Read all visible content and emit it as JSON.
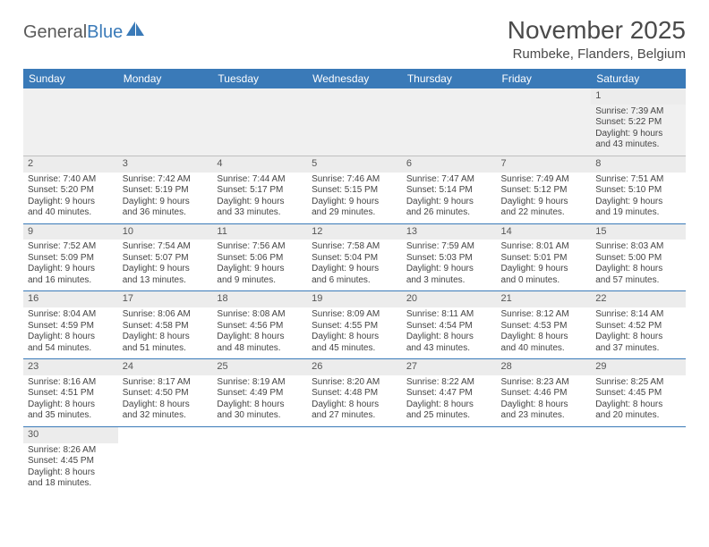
{
  "logo": {
    "text_gray": "General",
    "text_blue": "Blue",
    "sail_color": "#3a7ab8"
  },
  "header": {
    "month_title": "November 2025",
    "location": "Rumbeke, Flanders, Belgium"
  },
  "colors": {
    "header_bg": "#3a7ab8",
    "header_text": "#ffffff",
    "daynum_bg": "#ececec",
    "row_divider": "#3a7ab8",
    "first_row_bg": "#f0f0f0",
    "text": "#444444"
  },
  "day_headers": [
    "Sunday",
    "Monday",
    "Tuesday",
    "Wednesday",
    "Thursday",
    "Friday",
    "Saturday"
  ],
  "weeks": [
    [
      null,
      null,
      null,
      null,
      null,
      null,
      {
        "n": "1",
        "sunrise": "Sunrise: 7:39 AM",
        "sunset": "Sunset: 5:22 PM",
        "day1": "Daylight: 9 hours",
        "day2": "and 43 minutes."
      }
    ],
    [
      {
        "n": "2",
        "sunrise": "Sunrise: 7:40 AM",
        "sunset": "Sunset: 5:20 PM",
        "day1": "Daylight: 9 hours",
        "day2": "and 40 minutes."
      },
      {
        "n": "3",
        "sunrise": "Sunrise: 7:42 AM",
        "sunset": "Sunset: 5:19 PM",
        "day1": "Daylight: 9 hours",
        "day2": "and 36 minutes."
      },
      {
        "n": "4",
        "sunrise": "Sunrise: 7:44 AM",
        "sunset": "Sunset: 5:17 PM",
        "day1": "Daylight: 9 hours",
        "day2": "and 33 minutes."
      },
      {
        "n": "5",
        "sunrise": "Sunrise: 7:46 AM",
        "sunset": "Sunset: 5:15 PM",
        "day1": "Daylight: 9 hours",
        "day2": "and 29 minutes."
      },
      {
        "n": "6",
        "sunrise": "Sunrise: 7:47 AM",
        "sunset": "Sunset: 5:14 PM",
        "day1": "Daylight: 9 hours",
        "day2": "and 26 minutes."
      },
      {
        "n": "7",
        "sunrise": "Sunrise: 7:49 AM",
        "sunset": "Sunset: 5:12 PM",
        "day1": "Daylight: 9 hours",
        "day2": "and 22 minutes."
      },
      {
        "n": "8",
        "sunrise": "Sunrise: 7:51 AM",
        "sunset": "Sunset: 5:10 PM",
        "day1": "Daylight: 9 hours",
        "day2": "and 19 minutes."
      }
    ],
    [
      {
        "n": "9",
        "sunrise": "Sunrise: 7:52 AM",
        "sunset": "Sunset: 5:09 PM",
        "day1": "Daylight: 9 hours",
        "day2": "and 16 minutes."
      },
      {
        "n": "10",
        "sunrise": "Sunrise: 7:54 AM",
        "sunset": "Sunset: 5:07 PM",
        "day1": "Daylight: 9 hours",
        "day2": "and 13 minutes."
      },
      {
        "n": "11",
        "sunrise": "Sunrise: 7:56 AM",
        "sunset": "Sunset: 5:06 PM",
        "day1": "Daylight: 9 hours",
        "day2": "and 9 minutes."
      },
      {
        "n": "12",
        "sunrise": "Sunrise: 7:58 AM",
        "sunset": "Sunset: 5:04 PM",
        "day1": "Daylight: 9 hours",
        "day2": "and 6 minutes."
      },
      {
        "n": "13",
        "sunrise": "Sunrise: 7:59 AM",
        "sunset": "Sunset: 5:03 PM",
        "day1": "Daylight: 9 hours",
        "day2": "and 3 minutes."
      },
      {
        "n": "14",
        "sunrise": "Sunrise: 8:01 AM",
        "sunset": "Sunset: 5:01 PM",
        "day1": "Daylight: 9 hours",
        "day2": "and 0 minutes."
      },
      {
        "n": "15",
        "sunrise": "Sunrise: 8:03 AM",
        "sunset": "Sunset: 5:00 PM",
        "day1": "Daylight: 8 hours",
        "day2": "and 57 minutes."
      }
    ],
    [
      {
        "n": "16",
        "sunrise": "Sunrise: 8:04 AM",
        "sunset": "Sunset: 4:59 PM",
        "day1": "Daylight: 8 hours",
        "day2": "and 54 minutes."
      },
      {
        "n": "17",
        "sunrise": "Sunrise: 8:06 AM",
        "sunset": "Sunset: 4:58 PM",
        "day1": "Daylight: 8 hours",
        "day2": "and 51 minutes."
      },
      {
        "n": "18",
        "sunrise": "Sunrise: 8:08 AM",
        "sunset": "Sunset: 4:56 PM",
        "day1": "Daylight: 8 hours",
        "day2": "and 48 minutes."
      },
      {
        "n": "19",
        "sunrise": "Sunrise: 8:09 AM",
        "sunset": "Sunset: 4:55 PM",
        "day1": "Daylight: 8 hours",
        "day2": "and 45 minutes."
      },
      {
        "n": "20",
        "sunrise": "Sunrise: 8:11 AM",
        "sunset": "Sunset: 4:54 PM",
        "day1": "Daylight: 8 hours",
        "day2": "and 43 minutes."
      },
      {
        "n": "21",
        "sunrise": "Sunrise: 8:12 AM",
        "sunset": "Sunset: 4:53 PM",
        "day1": "Daylight: 8 hours",
        "day2": "and 40 minutes."
      },
      {
        "n": "22",
        "sunrise": "Sunrise: 8:14 AM",
        "sunset": "Sunset: 4:52 PM",
        "day1": "Daylight: 8 hours",
        "day2": "and 37 minutes."
      }
    ],
    [
      {
        "n": "23",
        "sunrise": "Sunrise: 8:16 AM",
        "sunset": "Sunset: 4:51 PM",
        "day1": "Daylight: 8 hours",
        "day2": "and 35 minutes."
      },
      {
        "n": "24",
        "sunrise": "Sunrise: 8:17 AM",
        "sunset": "Sunset: 4:50 PM",
        "day1": "Daylight: 8 hours",
        "day2": "and 32 minutes."
      },
      {
        "n": "25",
        "sunrise": "Sunrise: 8:19 AM",
        "sunset": "Sunset: 4:49 PM",
        "day1": "Daylight: 8 hours",
        "day2": "and 30 minutes."
      },
      {
        "n": "26",
        "sunrise": "Sunrise: 8:20 AM",
        "sunset": "Sunset: 4:48 PM",
        "day1": "Daylight: 8 hours",
        "day2": "and 27 minutes."
      },
      {
        "n": "27",
        "sunrise": "Sunrise: 8:22 AM",
        "sunset": "Sunset: 4:47 PM",
        "day1": "Daylight: 8 hours",
        "day2": "and 25 minutes."
      },
      {
        "n": "28",
        "sunrise": "Sunrise: 8:23 AM",
        "sunset": "Sunset: 4:46 PM",
        "day1": "Daylight: 8 hours",
        "day2": "and 23 minutes."
      },
      {
        "n": "29",
        "sunrise": "Sunrise: 8:25 AM",
        "sunset": "Sunset: 4:45 PM",
        "day1": "Daylight: 8 hours",
        "day2": "and 20 minutes."
      }
    ],
    [
      {
        "n": "30",
        "sunrise": "Sunrise: 8:26 AM",
        "sunset": "Sunset: 4:45 PM",
        "day1": "Daylight: 8 hours",
        "day2": "and 18 minutes."
      },
      null,
      null,
      null,
      null,
      null,
      null
    ]
  ]
}
